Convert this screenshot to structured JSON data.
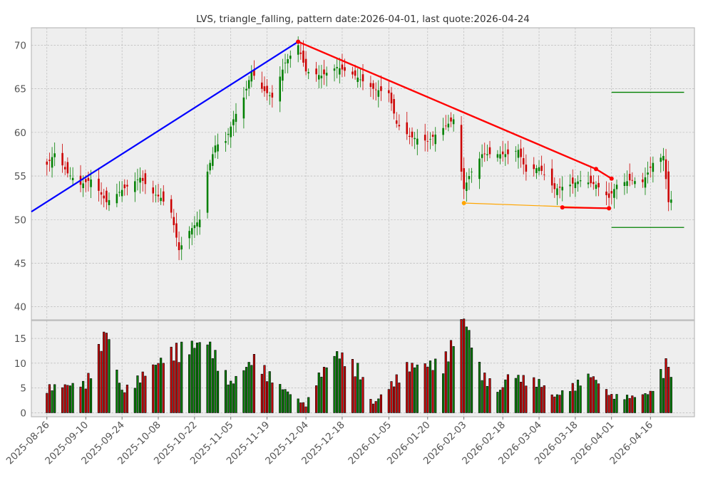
{
  "chart_data": {
    "type": "candlestick",
    "title": "LVS, triangle_falling, pattern date:2026-04-01, last quote:2026-04-24",
    "xlabel": "",
    "ylabel": "",
    "price_panel": {
      "ylim": [
        38.5,
        72
      ],
      "yticks": [
        40,
        45,
        50,
        55,
        60,
        65,
        70
      ]
    },
    "volume_panel": {
      "ylim": [
        -0.8,
        18.6
      ],
      "yticks": [
        0,
        5,
        10,
        15
      ]
    },
    "x_start": "2025-08-20",
    "x_end": "2026-05-03",
    "x_tick_labels": [
      "2025-08-26",
      "2025-09-10",
      "2025-09-24",
      "2025-10-08",
      "2025-10-22",
      "2025-11-05",
      "2025-11-19",
      "2025-12-04",
      "2025-12-18",
      "2026-01-05",
      "2026-01-20",
      "2026-02-03",
      "2026-02-18",
      "2026-03-04",
      "2026-03-18",
      "2026-04-01",
      "2026-04-16"
    ],
    "grid": true,
    "colors": {
      "up": "#008000",
      "down": "#cc0000",
      "upper_trendline": "#ff0000",
      "lower_trendline": "#ffa500",
      "rise_line": "#0000ff",
      "targets": "#008000",
      "lows_line": "#ff0000"
    },
    "price_anchors": [
      [
        "2025-08-26",
        56.3
      ],
      [
        "2025-08-29",
        57.6
      ],
      [
        "2025-09-03",
        55.3
      ],
      [
        "2025-09-08",
        54.0
      ],
      [
        "2025-09-12",
        54.6
      ],
      [
        "2025-09-18",
        52.0
      ],
      [
        "2025-09-24",
        53.4
      ],
      [
        "2025-10-01",
        54.8
      ],
      [
        "2025-10-06",
        53.0
      ],
      [
        "2025-10-09",
        52.5
      ],
      [
        "2025-10-13",
        50.8
      ],
      [
        "2025-10-16",
        46.5
      ],
      [
        "2025-10-20",
        48.7
      ],
      [
        "2025-10-24",
        50.0
      ],
      [
        "2025-10-27",
        55.5
      ],
      [
        "2025-10-30",
        58.5
      ],
      [
        "2025-11-03",
        59.0
      ],
      [
        "2025-11-06",
        61.5
      ],
      [
        "2025-11-10",
        64.0
      ],
      [
        "2025-11-13",
        67.0
      ],
      [
        "2025-11-17",
        65.0
      ],
      [
        "2025-11-21",
        64.0
      ],
      [
        "2025-11-26",
        68.0
      ],
      [
        "2025-12-01",
        70.0
      ],
      [
        "2025-12-04",
        67.0
      ],
      [
        "2025-12-10",
        66.5
      ],
      [
        "2025-12-16",
        67.5
      ],
      [
        "2025-12-23",
        66.5
      ],
      [
        "2025-12-30",
        65.0
      ],
      [
        "2026-01-05",
        64.5
      ],
      [
        "2026-01-08",
        61.0
      ],
      [
        "2026-01-13",
        59.5
      ],
      [
        "2026-01-20",
        59.0
      ],
      [
        "2026-01-26",
        60.5
      ],
      [
        "2026-01-30",
        61.5
      ],
      [
        "2026-02-03",
        53.5
      ],
      [
        "2026-02-05",
        55.0
      ],
      [
        "2026-02-10",
        57.5
      ],
      [
        "2026-02-17",
        57.5
      ],
      [
        "2026-02-20",
        57.5
      ],
      [
        "2026-02-24",
        58.0
      ],
      [
        "2026-02-27",
        55.5
      ],
      [
        "2026-03-04",
        56.0
      ],
      [
        "2026-03-10",
        53.5
      ],
      [
        "2026-03-16",
        54.0
      ],
      [
        "2026-03-20",
        54.5
      ],
      [
        "2026-03-26",
        54.0
      ],
      [
        "2026-03-31",
        52.5
      ],
      [
        "2026-04-03",
        54.0
      ],
      [
        "2026-04-08",
        54.5
      ],
      [
        "2026-04-13",
        54.3
      ],
      [
        "2026-04-17",
        56.5
      ],
      [
        "2026-04-21",
        57.3
      ],
      [
        "2026-04-23",
        52.0
      ],
      [
        "2026-04-24",
        52.3
      ]
    ],
    "volume_anchors": [
      [
        "2025-08-26",
        4.8
      ],
      [
        "2025-09-10",
        5.5
      ],
      [
        "2025-09-18",
        15.6
      ],
      [
        "2025-09-24",
        4.0
      ],
      [
        "2025-10-14",
        11.8
      ],
      [
        "2025-10-27",
        13.4
      ],
      [
        "2025-11-05",
        5.5
      ],
      [
        "2025-11-14",
        10.2
      ],
      [
        "2025-11-24",
        5.0
      ],
      [
        "2025-12-04",
        1.4
      ],
      [
        "2025-12-08",
        6.3
      ],
      [
        "2025-12-16",
        11.2
      ],
      [
        "2025-12-24",
        8.5
      ],
      [
        "2025-12-30",
        1.6
      ],
      [
        "2026-01-12",
        8.7
      ],
      [
        "2026-01-26",
        9.4
      ],
      [
        "2026-02-03",
        17.9
      ],
      [
        "2026-02-10",
        7.3
      ],
      [
        "2026-02-17",
        4.0
      ],
      [
        "2026-02-20",
        7.1
      ],
      [
        "2026-03-04",
        5.8
      ],
      [
        "2026-03-10",
        3.0
      ],
      [
        "2026-03-24",
        7.1
      ],
      [
        "2026-04-01",
        3.2
      ],
      [
        "2026-04-10",
        3.0
      ],
      [
        "2026-04-16",
        3.8
      ],
      [
        "2026-04-23",
        10.2
      ],
      [
        "2026-04-24",
        6.2
      ]
    ],
    "overlays": {
      "rise_line": [
        [
          "2025-08-20",
          50.9
        ],
        [
          "2025-12-01",
          70.4
        ]
      ],
      "upper_trendline": [
        [
          "2025-12-01",
          70.4
        ],
        [
          "2026-03-26",
          55.8
        ],
        [
          "2026-04-01",
          54.7
        ]
      ],
      "lower_trendline": [
        [
          "2026-02-03",
          51.9
        ],
        [
          "2026-03-31",
          51.3
        ]
      ],
      "lows_line": [
        [
          "2026-03-13",
          51.4
        ],
        [
          "2026-03-31",
          51.3
        ]
      ],
      "target_high": {
        "value": 64.6,
        "from": "2026-04-01",
        "to": "2026-04-29"
      },
      "target_low": {
        "value": 49.1,
        "from": "2026-04-01",
        "to": "2026-04-29"
      }
    }
  }
}
